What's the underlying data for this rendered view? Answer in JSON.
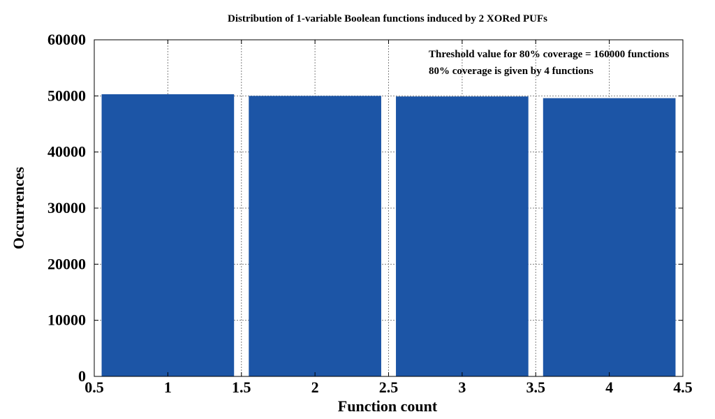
{
  "chart_data": {
    "type": "bar",
    "title": "Distribution of 1-variable Boolean functions induced by 2 XORed PUFs",
    "xlabel": "Function count",
    "ylabel": "Occurrences",
    "x": [
      1,
      2,
      3,
      4
    ],
    "values": [
      50300,
      50000,
      49900,
      49600
    ],
    "xlim": [
      0.5,
      4.5
    ],
    "ylim": [
      0,
      60000
    ],
    "xticks": [
      "0.5",
      "1",
      "1.5",
      "2",
      "2.5",
      "3",
      "3.5",
      "4",
      "4.5"
    ],
    "yticks": [
      "0",
      "10000",
      "20000",
      "30000",
      "40000",
      "50000",
      "60000"
    ],
    "annotations": [
      "Threshold value for 80% coverage = 160000 functions",
      "80% coverage is given by 4 functions"
    ],
    "grid": true,
    "bar_color": "#1c55a6"
  }
}
